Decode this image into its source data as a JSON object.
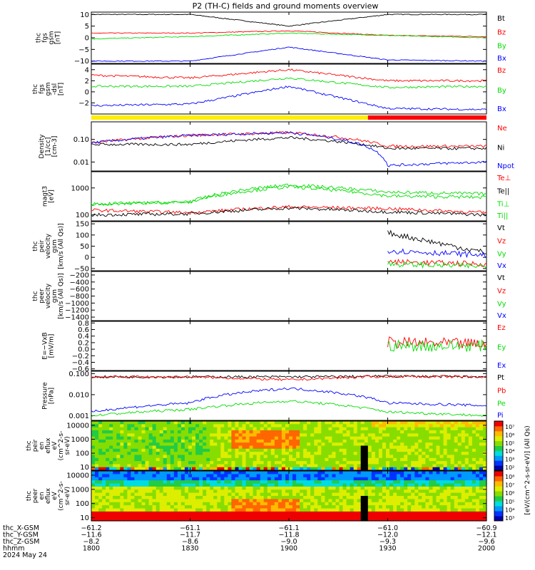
{
  "title": "P2 (TH-C) fields and ground moments overview",
  "colors": {
    "black": "#000000",
    "red": "#ff0000",
    "green": "#00dd00",
    "blue": "#0000ff",
    "yellow": "#ffee00"
  },
  "panels": [
    {
      "id": "fgs",
      "ylabel": [
        "thc",
        "fgs",
        "gsm",
        "[nT]"
      ],
      "yticks": [
        {
          "v": 10,
          "label": "10"
        },
        {
          "v": 5,
          "label": "5"
        },
        {
          "v": 0,
          "label": "0"
        },
        {
          "v": -5,
          "label": "−5"
        },
        {
          "v": -10,
          "label": "−10"
        }
      ],
      "ylim": [
        -11,
        11
      ],
      "log": false,
      "legend": [
        {
          "text": "Bt",
          "color": "black"
        },
        {
          "text": "Bz",
          "color": "red"
        },
        {
          "text": "By",
          "color": "green"
        },
        {
          "text": "Bx",
          "color": "blue"
        }
      ]
    },
    {
      "id": "fgs-dsl",
      "ylabel": [
        "thc",
        "fgs",
        "gsm",
        "-dsl",
        "[nT]"
      ],
      "yticks": [
        {
          "v": 4,
          "label": "4"
        },
        {
          "v": 2,
          "label": "2"
        },
        {
          "v": 0,
          "label": "0"
        },
        {
          "v": -2,
          "label": "−2"
        }
      ],
      "ylim": [
        -4,
        5
      ],
      "log": false,
      "legend": [
        {
          "text": "Bz",
          "color": "red"
        },
        {
          "text": "By",
          "color": "green"
        },
        {
          "text": "Bx",
          "color": "blue"
        }
      ]
    },
    {
      "id": "density",
      "ylabel": [
        "Density",
        "[1/cc]",
        "[cm-3]"
      ],
      "yticks": [
        {
          "v": 0.1,
          "label": "0.10"
        },
        {
          "v": 0.01,
          "label": "0.01"
        }
      ],
      "ylim": [
        0.004,
        0.6
      ],
      "log": true,
      "legend": [
        {
          "text": "Ne",
          "color": "red"
        },
        {
          "text": "Ni",
          "color": "black"
        },
        {
          "text": "Npot",
          "color": "blue"
        }
      ]
    },
    {
      "id": "temp",
      "ylabel": [
        "magt3",
        "[eV]"
      ],
      "yticks": [
        {
          "v": 1000,
          "label": "1000"
        },
        {
          "v": 100,
          "label": "100"
        }
      ],
      "ylim": [
        60,
        4000
      ],
      "log": true,
      "legend": [
        {
          "text": "Te⊥",
          "color": "red"
        },
        {
          "text": "Te||",
          "color": "black"
        },
        {
          "text": "Ti⊥",
          "color": "green"
        },
        {
          "text": "Ti||",
          "color": "green"
        }
      ]
    },
    {
      "id": "peir-vel",
      "ylabel": [
        "thc",
        "peir",
        "velocity",
        "gsm",
        "[km/s (All Qs)]"
      ],
      "yticks": [
        {
          "v": 150,
          "label": "150"
        },
        {
          "v": 100,
          "label": "100"
        },
        {
          "v": 50,
          "label": "50"
        },
        {
          "v": 0,
          "label": "0"
        },
        {
          "v": -50,
          "label": "−50"
        }
      ],
      "ylim": [
        -60,
        160
      ],
      "log": false,
      "legend": [
        {
          "text": "Vt",
          "color": "black"
        },
        {
          "text": "Vz",
          "color": "red"
        },
        {
          "text": "Vy",
          "color": "green"
        },
        {
          "text": "Vx",
          "color": "blue"
        }
      ]
    },
    {
      "id": "peer-vel",
      "ylabel": [
        "thc",
        "peer",
        "velocity",
        "gsm",
        "[km/s (All Qs)]"
      ],
      "yticks": [
        {
          "v": -200,
          "label": "−200"
        },
        {
          "v": -400,
          "label": "−400"
        },
        {
          "v": -600,
          "label": "−600"
        },
        {
          "v": -800,
          "label": "−800"
        },
        {
          "v": -1000,
          "label": "−1000"
        },
        {
          "v": -1200,
          "label": "−1200"
        },
        {
          "v": -1400,
          "label": "−1400"
        }
      ],
      "ylim": [
        -1500,
        -100
      ],
      "log": false,
      "legend": [
        {
          "text": "Vt",
          "color": "black"
        },
        {
          "text": "Vz",
          "color": "red"
        },
        {
          "text": "Vy",
          "color": "green"
        },
        {
          "text": "Vx",
          "color": "blue"
        }
      ]
    },
    {
      "id": "efield",
      "ylabel": [
        "E=−VxB",
        "[mV/m]"
      ],
      "yticks": [
        {
          "v": 0.8,
          "label": "0.8"
        },
        {
          "v": 0.6,
          "label": "0.6"
        },
        {
          "v": 0.4,
          "label": "0.4"
        },
        {
          "v": 0.2,
          "label": "0.2"
        },
        {
          "v": 0,
          "label": "0.0"
        },
        {
          "v": -0.2,
          "label": "−0.2"
        },
        {
          "v": -0.4,
          "label": "−0.4"
        },
        {
          "v": -0.6,
          "label": "−0.6"
        }
      ],
      "ylim": [
        -0.65,
        0.85
      ],
      "log": false,
      "legend": [
        {
          "text": "Ez",
          "color": "red"
        },
        {
          "text": "Ey",
          "color": "green"
        },
        {
          "text": "Ex",
          "color": "blue"
        }
      ]
    },
    {
      "id": "pressure",
      "ylabel": [
        "Pressure",
        "[nPa]"
      ],
      "yticks": [
        {
          "v": 0.1,
          "label": "0.100"
        },
        {
          "v": 0.01,
          "label": "0.010"
        },
        {
          "v": 0.001,
          "label": "0.001"
        }
      ],
      "ylim": [
        0.0006,
        0.13
      ],
      "log": true,
      "legend": [
        {
          "text": "Pt",
          "color": "black"
        },
        {
          "text": "Pb",
          "color": "red"
        },
        {
          "text": "Pe",
          "color": "green"
        },
        {
          "text": "Pi",
          "color": "blue"
        }
      ]
    },
    {
      "id": "peir-spec",
      "ylabel": [
        "thc",
        "peir",
        "en",
        "eflux",
        "eV",
        "(cm^2-s-",
        "sr-eV)"
      ],
      "yticks": [
        {
          "v": 10000,
          "label": "10000"
        },
        {
          "v": 1000,
          "label": "1000"
        },
        {
          "v": 100,
          "label": "100"
        },
        {
          "v": 10,
          "label": "10"
        }
      ],
      "ylim": [
        6,
        20000
      ],
      "log": true,
      "legend": []
    },
    {
      "id": "peer-spec",
      "ylabel": [
        "thc",
        "peer",
        "en",
        "eflux",
        "eV",
        "(cm^2-s-",
        "sr-eV)"
      ],
      "yticks": [
        {
          "v": 10000,
          "label": "10000"
        },
        {
          "v": 1000,
          "label": "1000"
        },
        {
          "v": 100,
          "label": "100"
        },
        {
          "v": 10,
          "label": "10"
        }
      ],
      "ylim": [
        6,
        20000
      ],
      "log": true,
      "legend": []
    }
  ],
  "colorbar": {
    "label": "[eV/(cm^2-s-sr-eV)] (All Qs)",
    "upper": [
      "10⁷",
      "10⁶",
      "10⁵",
      "10⁴",
      "10³",
      "10²"
    ],
    "lower": [
      "10⁸",
      "10⁷",
      "10⁶",
      "10⁵",
      "10⁴",
      "10³"
    ]
  },
  "xaxis": {
    "rows": [
      {
        "name": "thc_X-GSM",
        "values": [
          "−61.2",
          "−61.1",
          "−61.1",
          "−61.0",
          "−60.9"
        ]
      },
      {
        "name": "thc_Y-GSM",
        "values": [
          "−11.6",
          "−11.7",
          "−11.8",
          "−12.0",
          "−12.1"
        ]
      },
      {
        "name": "thc_Z-GSM",
        "values": [
          "−8.2",
          "−8.6",
          "−9.0",
          "−9.3",
          "−9.6"
        ]
      },
      {
        "name": "hhmm",
        "values": [
          "1800",
          "1830",
          "1900",
          "1930",
          "2000"
        ]
      }
    ],
    "date": "2024 May 24"
  },
  "chart_data": {
    "type": "line",
    "title": "P2 (TH-C) fields and ground moments overview",
    "x": [
      "1800",
      "1830",
      "1900",
      "1930",
      "2000"
    ],
    "mode_bar": [
      {
        "from": "1800",
        "to": "1926",
        "color": "yellow"
      },
      {
        "from": "1926",
        "to": "2000",
        "color": "red"
      }
    ],
    "series": [
      {
        "name": "Bt",
        "panel": "fgs",
        "values": [
          10,
          10,
          5,
          10,
          10
        ]
      },
      {
        "name": "Bz",
        "panel": "fgs",
        "values": [
          2,
          2,
          3,
          1,
          0.5
        ]
      },
      {
        "name": "By",
        "panel": "fgs",
        "values": [
          -0.5,
          0.5,
          2,
          1,
          0
        ]
      },
      {
        "name": "Bx",
        "panel": "fgs",
        "values": [
          -10,
          -10,
          -4,
          -9.5,
          -10
        ]
      },
      {
        "name": "Bz",
        "panel": "fgs-dsl",
        "values": [
          3,
          2.5,
          4,
          2,
          2
        ]
      },
      {
        "name": "By",
        "panel": "fgs-dsl",
        "values": [
          1,
          1,
          2.5,
          0.8,
          1
        ]
      },
      {
        "name": "Bx",
        "panel": "fgs-dsl",
        "values": [
          -2.5,
          -2.2,
          1,
          -3,
          -3.2
        ]
      },
      {
        "name": "Ne",
        "panel": "density",
        "values": [
          0.07,
          0.15,
          0.2,
          0.05,
          0.05
        ]
      },
      {
        "name": "Ni",
        "panel": "density",
        "values": [
          0.06,
          0.06,
          0.12,
          0.04,
          0.04
        ]
      },
      {
        "name": "Npot",
        "panel": "density",
        "values": [
          0.07,
          0.15,
          0.2,
          0.007,
          0.01
        ]
      },
      {
        "name": "Te⊥",
        "panel": "temp",
        "values": [
          150,
          120,
          200,
          170,
          120
        ]
      },
      {
        "name": "Te||",
        "panel": "temp",
        "values": [
          100,
          110,
          180,
          130,
          100
        ]
      },
      {
        "name": "Ti⊥",
        "panel": "temp",
        "values": [
          250,
          300,
          1100,
          500,
          450
        ]
      },
      {
        "name": "Ti||",
        "panel": "temp",
        "values": [
          250,
          300,
          1300,
          700,
          600
        ]
      },
      {
        "name": "Vt",
        "panel": "peir-vel",
        "values": [
          null,
          null,
          null,
          110,
          20
        ]
      },
      {
        "name": "Vz",
        "panel": "peir-vel",
        "values": [
          null,
          null,
          null,
          -20,
          -30
        ]
      },
      {
        "name": "Vy",
        "panel": "peir-vel",
        "values": [
          null,
          null,
          null,
          -30,
          -40
        ]
      },
      {
        "name": "Vx",
        "panel": "peir-vel",
        "values": [
          null,
          null,
          null,
          30,
          10
        ]
      },
      {
        "name": "Ez",
        "panel": "efield",
        "values": [
          null,
          null,
          null,
          0.2,
          0.15
        ]
      },
      {
        "name": "Ey",
        "panel": "efield",
        "values": [
          null,
          null,
          null,
          0.1,
          0.1
        ]
      },
      {
        "name": "Pt",
        "panel": "pressure",
        "values": [
          0.07,
          0.07,
          0.07,
          0.075,
          0.07
        ]
      },
      {
        "name": "Pb",
        "panel": "pressure",
        "values": [
          0.07,
          0.07,
          0.05,
          0.075,
          0.07
        ]
      },
      {
        "name": "Pe",
        "panel": "pressure",
        "values": [
          0.001,
          0.002,
          0.005,
          0.0015,
          0.001
        ]
      },
      {
        "name": "Pi",
        "panel": "pressure",
        "values": [
          0.0015,
          0.004,
          0.02,
          0.004,
          0.003
        ]
      }
    ]
  }
}
